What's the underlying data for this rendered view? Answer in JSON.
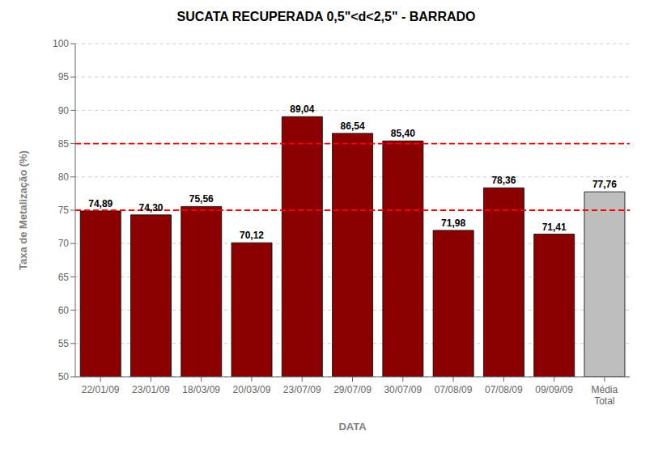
{
  "chart_data": {
    "type": "bar",
    "title": "SUCATA RECUPERADA 0,5\"<d<2,5\" - BARRADO",
    "xlabel": "DATA",
    "ylabel": "Taxa de Metalização (%)",
    "categories": [
      "22/01/09",
      "23/01/09",
      "18/03/09",
      "20/03/09",
      "23/07/09",
      "29/07/09",
      "30/07/09",
      "07/08/09",
      "07/08/09",
      "09/09/09",
      "Média\nTotal"
    ],
    "values": [
      74.89,
      74.3,
      75.56,
      70.12,
      89.04,
      86.54,
      85.4,
      71.98,
      78.36,
      71.41,
      77.76
    ],
    "value_labels": [
      "74,89",
      "74,30",
      "75,56",
      "70,12",
      "89,04",
      "86,54",
      "85,40",
      "71,98",
      "78,36",
      "71,41",
      "77,76"
    ],
    "data_labels": true,
    "colors": [
      "#8B0000",
      "#8B0000",
      "#8B0000",
      "#8B0000",
      "#8B0000",
      "#8B0000",
      "#8B0000",
      "#8B0000",
      "#8B0000",
      "#8B0000",
      "#BEBEBE"
    ],
    "ylim": [
      50,
      100
    ],
    "yticks": [
      50,
      55,
      60,
      65,
      70,
      75,
      80,
      85,
      90,
      95,
      100
    ],
    "grid": true,
    "hlines": [
      {
        "value": 85,
        "color": "#FF0000",
        "line_style": "dashed"
      },
      {
        "value": 75,
        "color": "#FF0000",
        "line_style": "dashed"
      }
    ]
  }
}
